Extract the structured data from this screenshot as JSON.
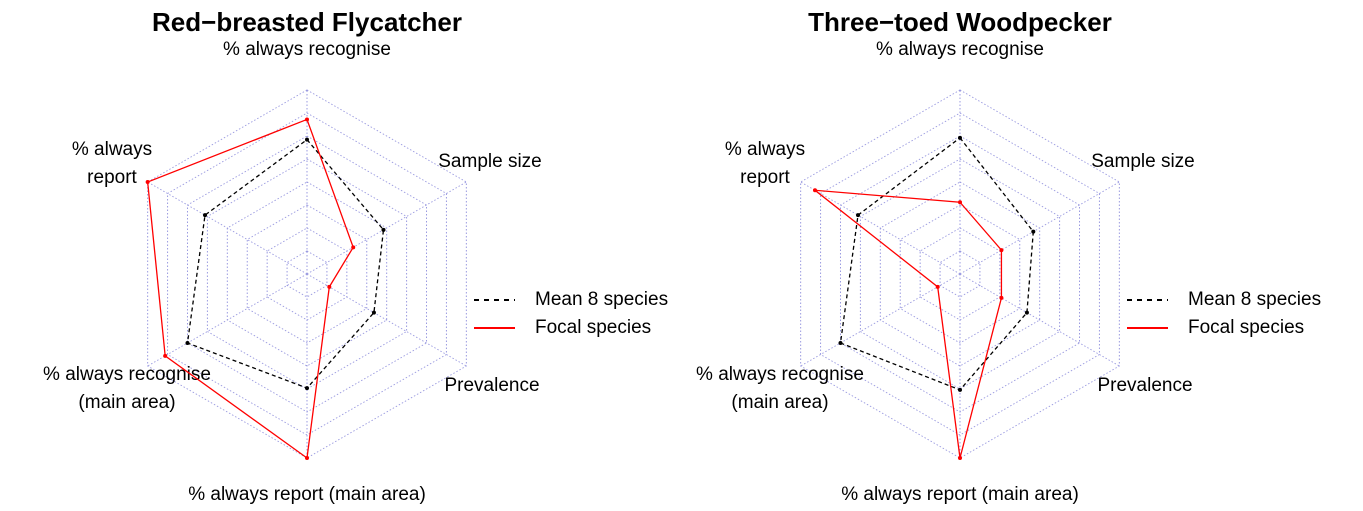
{
  "chart_data": [
    {
      "type": "radar",
      "title": "Red−breasted Flycatcher",
      "categories": [
        "% always recognise",
        "Sample size",
        "Prevalence",
        "% always report (main area)",
        "% always recognise\n(main area)",
        "% always\nreport"
      ],
      "rlim": [
        0,
        1
      ],
      "rticks": [
        0.125,
        0.25,
        0.375,
        0.5,
        0.625,
        0.75,
        0.875,
        1
      ],
      "grid": true,
      "series": [
        {
          "name": "Mean 8 species",
          "color": "#000000",
          "dash": true,
          "values": [
            0.73,
            0.48,
            0.42,
            0.62,
            0.75,
            0.64
          ]
        },
        {
          "name": "Focal species",
          "color": "#ff0000",
          "dash": false,
          "values": [
            0.84,
            0.29,
            0.14,
            1.0,
            0.89,
            1.0
          ]
        }
      ]
    },
    {
      "type": "radar",
      "title": "Three−toed Woodpecker",
      "categories": [
        "% always recognise",
        "Sample size",
        "Prevalence",
        "% always report (main area)",
        "% always recognise\n(main area)",
        "% always\nreport"
      ],
      "rlim": [
        0,
        1
      ],
      "rticks": [
        0.125,
        0.25,
        0.375,
        0.5,
        0.625,
        0.75,
        0.875,
        1
      ],
      "grid": true,
      "series": [
        {
          "name": "Mean 8 species",
          "color": "#000000",
          "dash": true,
          "values": [
            0.74,
            0.46,
            0.42,
            0.63,
            0.75,
            0.64
          ]
        },
        {
          "name": "Focal species",
          "color": "#ff0000",
          "dash": false,
          "values": [
            0.39,
            0.26,
            0.26,
            1.0,
            0.14,
            0.91
          ]
        }
      ]
    }
  ]
}
